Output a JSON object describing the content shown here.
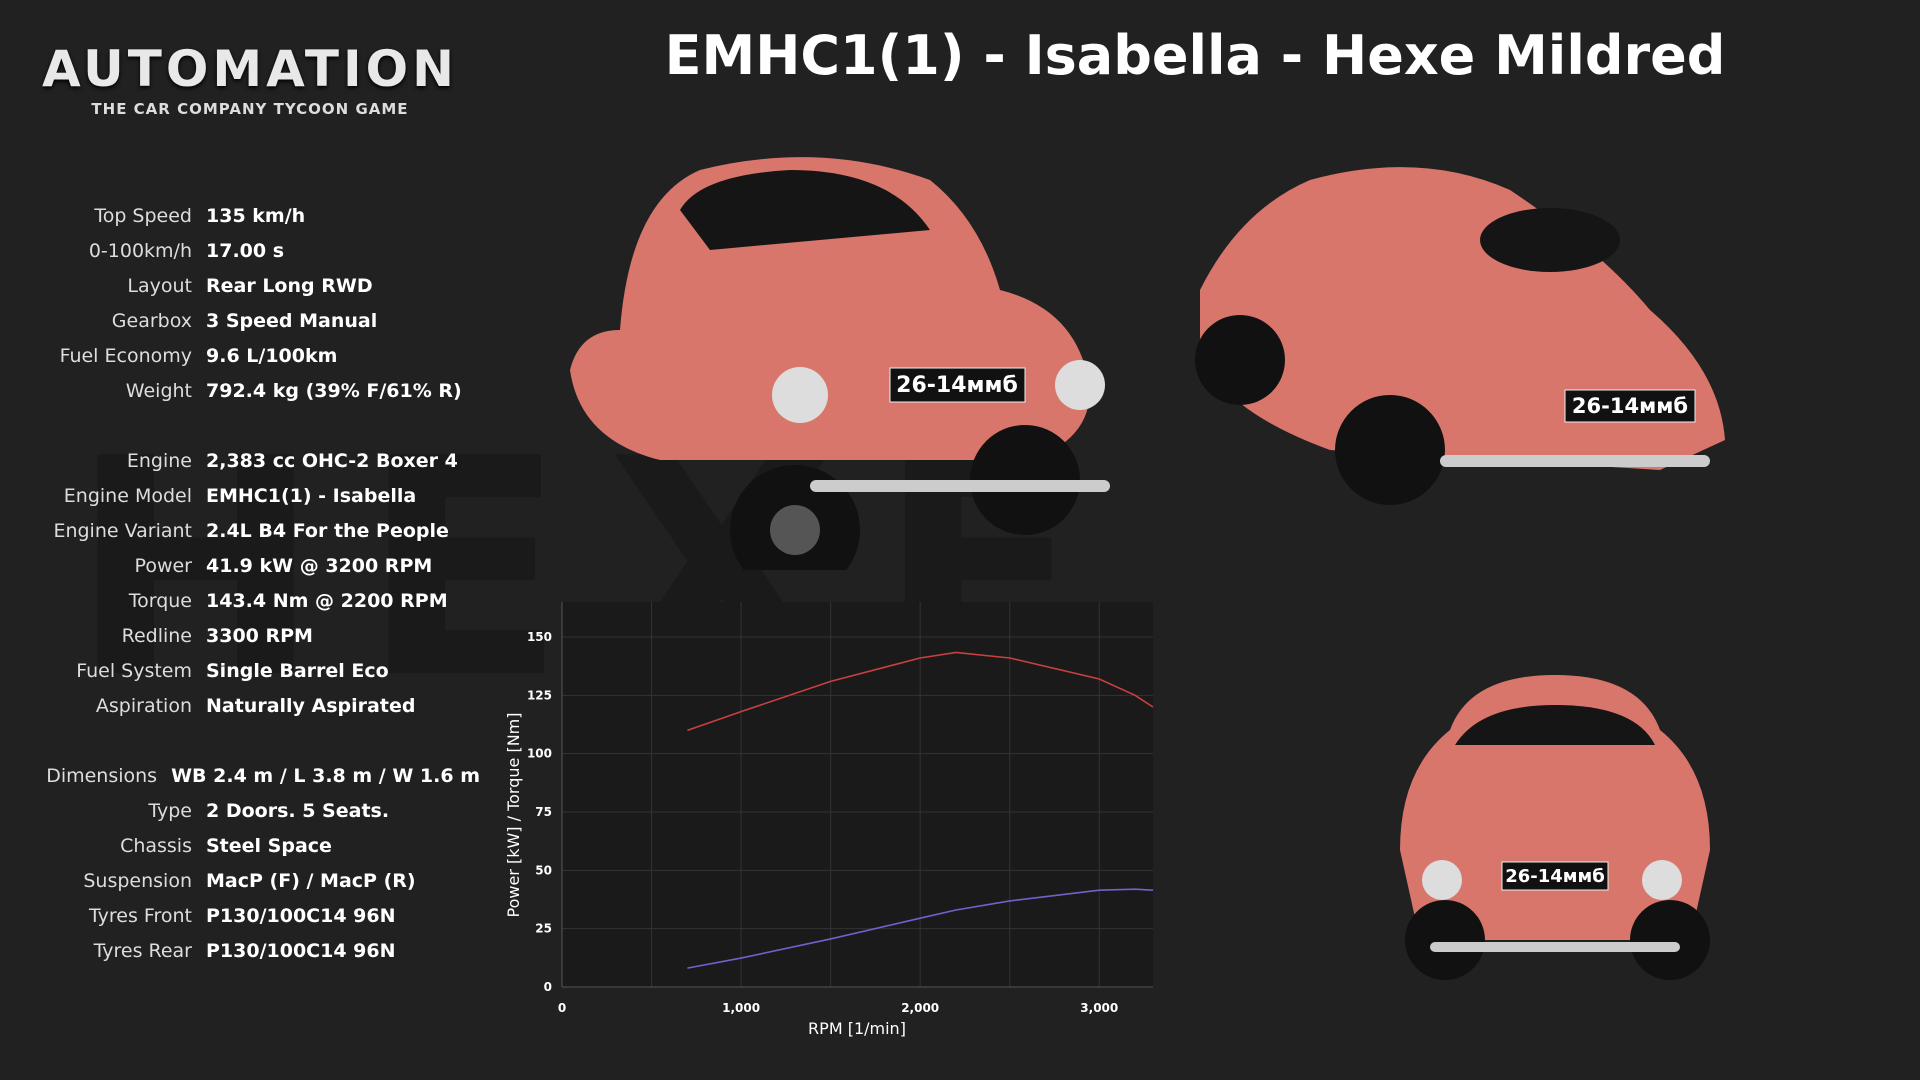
{
  "header": {
    "logo": "AUTOMATION",
    "logo_subtitle": "THE CAR COMPANY TYCOON GAME",
    "title": "EMHC1(1) - Isabella - Hexe Mildred",
    "watermark": "HEXE"
  },
  "specs": [
    [
      {
        "label": "Top Speed",
        "value": "135 km/h"
      },
      {
        "label": "0-100km/h",
        "value": "17.00 s"
      },
      {
        "label": "Layout",
        "value": "Rear Long RWD"
      },
      {
        "label": "Gearbox",
        "value": "3 Speed Manual"
      },
      {
        "label": "Fuel Economy",
        "value": "9.6 L/100km"
      },
      {
        "label": "Weight",
        "value": "792.4 kg (39% F/61% R)"
      }
    ],
    [
      {
        "label": "Engine",
        "value": "2,383 cc OHC-2 Boxer 4"
      },
      {
        "label": "Engine Model",
        "value": "EMHC1(1) - Isabella"
      },
      {
        "label": "Engine Variant",
        "value": "2.4L B4 For the People"
      },
      {
        "label": "Power",
        "value": "41.9 kW @ 3200 RPM"
      },
      {
        "label": "Torque",
        "value": "143.4 Nm @ 2200 RPM"
      },
      {
        "label": "Redline",
        "value": "3300 RPM"
      },
      {
        "label": "Fuel System",
        "value": "Single Barrel Eco"
      },
      {
        "label": "Aspiration",
        "value": "Naturally Aspirated"
      }
    ],
    [
      {
        "label": "Dimensions",
        "value": "WB 2.4 m / L 3.8 m / W 1.6 m"
      },
      {
        "label": "Type",
        "value": "2 Doors. 5 Seats."
      },
      {
        "label": "Chassis",
        "value": "Steel Space"
      },
      {
        "label": "Suspension",
        "value": "MacP (F) / MacP (R)"
      },
      {
        "label": "Tyres Front",
        "value": "P130/100C14 96N"
      },
      {
        "label": "Tyres Rear",
        "value": "P130/100C14 96N"
      }
    ]
  ],
  "cars": [
    {
      "plate": "26-14ммб"
    },
    {
      "plate": "26-14ммб"
    },
    {
      "plate": "26-14ммб"
    }
  ],
  "chart_data": {
    "type": "line",
    "x_label": "RPM [1/min]",
    "y_label": "Power [kW] / Torque [Nm]",
    "x": [
      700,
      1000,
      1500,
      2000,
      2200,
      2500,
      3000,
      3200,
      3300
    ],
    "series": [
      {
        "name": "Torque",
        "color": "#c8403f",
        "values": [
          110,
          118,
          131,
          141,
          143.4,
          141,
          132,
          125,
          120
        ]
      },
      {
        "name": "Power",
        "color": "#6d63cc",
        "values": [
          8.1,
          12.4,
          20.6,
          29.5,
          33.0,
          36.9,
          41.5,
          41.9,
          41.5
        ]
      }
    ],
    "xlim": [
      0,
      3300
    ],
    "ylim": [
      0,
      165
    ],
    "xticks": [
      0,
      {
        "value": 1000,
        "label": "1,000"
      },
      {
        "value": 2000,
        "label": "2,000"
      },
      {
        "value": 3000,
        "label": "3,000"
      }
    ],
    "x_minor_ticks": [
      500,
      1500,
      2500
    ],
    "yticks": [
      0,
      25,
      50,
      75,
      100,
      125,
      150
    ],
    "grid": true
  }
}
